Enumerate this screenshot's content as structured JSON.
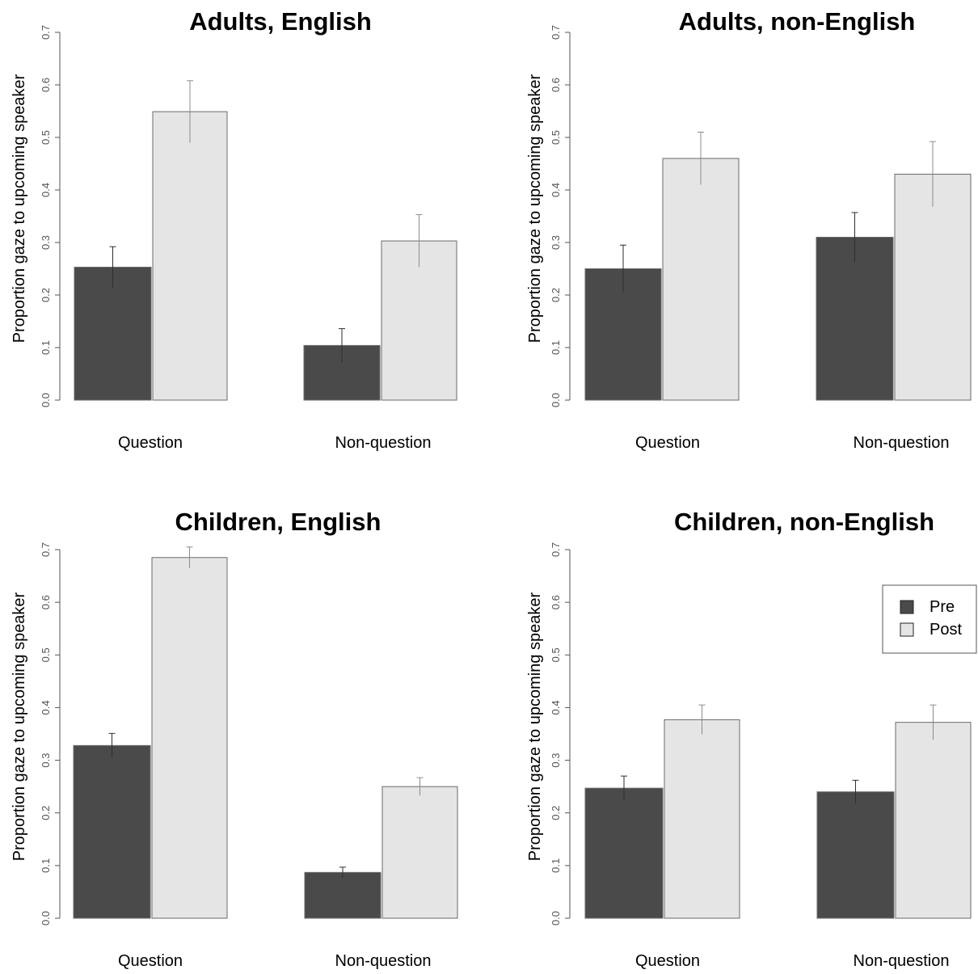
{
  "chart_data": [
    {
      "type": "bar",
      "title": "Adults, English",
      "ylabel": "Proportion gaze to upcoming speaker",
      "xlabel": "",
      "ylim": [
        0,
        0.7
      ],
      "yticks": [
        "0.0",
        "0.1",
        "0.2",
        "0.3",
        "0.4",
        "0.5",
        "0.6",
        "0.7"
      ],
      "categories": [
        "Question",
        "Non-question"
      ],
      "series": [
        {
          "name": "Pre",
          "color": "#4a4a4a",
          "values": [
            0.253,
            0.104
          ],
          "error": [
            0.039,
            0.032
          ]
        },
        {
          "name": "Post",
          "color": "#e5e5e5",
          "values": [
            0.549,
            0.303
          ],
          "error": [
            0.059,
            0.05
          ]
        }
      ],
      "legend": null
    },
    {
      "type": "bar",
      "title": "Adults, non-English",
      "ylabel": "Proportion gaze to upcoming speaker",
      "xlabel": "",
      "ylim": [
        0,
        0.7
      ],
      "yticks": [
        "0.0",
        "0.1",
        "0.2",
        "0.3",
        "0.4",
        "0.5",
        "0.6",
        "0.7"
      ],
      "categories": [
        "Question",
        "Non-question"
      ],
      "series": [
        {
          "name": "Pre",
          "color": "#4a4a4a",
          "values": [
            0.25,
            0.31
          ],
          "error": [
            0.045,
            0.047
          ]
        },
        {
          "name": "Post",
          "color": "#e5e5e5",
          "values": [
            0.46,
            0.43
          ],
          "error": [
            0.05,
            0.062
          ]
        }
      ],
      "legend": null
    },
    {
      "type": "bar",
      "title": "Children, English",
      "ylabel": "Proportion gaze to upcoming speaker",
      "xlabel": "",
      "ylim": [
        0,
        0.7
      ],
      "yticks": [
        "0.0",
        "0.1",
        "0.2",
        "0.3",
        "0.4",
        "0.5",
        "0.6",
        "0.7"
      ],
      "categories": [
        "Question",
        "Non-question"
      ],
      "series": [
        {
          "name": "Pre",
          "color": "#4a4a4a",
          "values": [
            0.328,
            0.087
          ],
          "error": [
            0.023,
            0.01
          ]
        },
        {
          "name": "Post",
          "color": "#e5e5e5",
          "values": [
            0.685,
            0.25
          ],
          "error": [
            0.02,
            0.017
          ]
        }
      ],
      "legend": null
    },
    {
      "type": "bar",
      "title": "Children, non-English",
      "ylabel": "Proportion gaze to upcoming speaker",
      "xlabel": "",
      "ylim": [
        0,
        0.7
      ],
      "yticks": [
        "0.0",
        "0.1",
        "0.2",
        "0.3",
        "0.4",
        "0.5",
        "0.6",
        "0.7"
      ],
      "categories": [
        "Question",
        "Non-question"
      ],
      "series": [
        {
          "name": "Pre",
          "color": "#4a4a4a",
          "values": [
            0.247,
            0.24
          ],
          "error": [
            0.023,
            0.022
          ]
        },
        {
          "name": "Post",
          "color": "#e5e5e5",
          "values": [
            0.377,
            0.372
          ],
          "error": [
            0.028,
            0.033
          ]
        }
      ],
      "legend": {
        "position": "top-right",
        "entries": [
          "Pre",
          "Post"
        ]
      }
    }
  ]
}
